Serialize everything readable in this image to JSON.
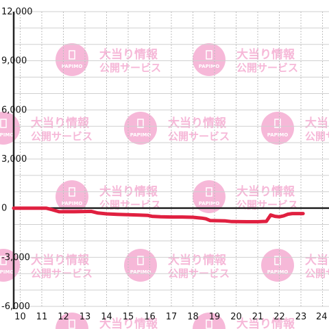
{
  "chart_data": {
    "type": "line",
    "title": "",
    "xlabel": "",
    "ylabel": "",
    "xlim": [
      9.7,
      24.3
    ],
    "ylim": [
      -6000,
      12000
    ],
    "x_ticks": [
      10,
      11,
      12,
      13,
      14,
      15,
      16,
      17,
      18,
      19,
      20,
      21,
      22,
      23,
      24
    ],
    "x_tick_labels": [
      "10",
      "11",
      "12",
      "13",
      "14",
      "15",
      "16",
      "17",
      "18",
      "19",
      "20",
      "21",
      "22",
      "23",
      "24"
    ],
    "y_ticks": [
      12000,
      9000,
      6000,
      3000,
      0,
      -3000,
      -6000
    ],
    "y_tick_labels": [
      "12,000",
      "9,000",
      "6,000",
      "3,000",
      "0",
      "-3,000",
      "-6,000"
    ],
    "grid": true,
    "zero_line": true,
    "series": [
      {
        "color": "#e02040",
        "x": [
          9.7,
          11.2,
          11.5,
          11.8,
          12.5,
          13.3,
          13.6,
          14.0,
          14.5,
          15.0,
          15.5,
          15.9,
          16.1,
          16.5,
          17.0,
          17.5,
          18.0,
          18.4,
          18.6,
          18.8,
          19.5,
          19.8,
          20.5,
          21.0,
          21.4,
          21.6,
          21.8,
          22.0,
          22.2,
          22.4,
          22.6,
          23.1
        ],
        "values": [
          0,
          0,
          -100,
          -220,
          -220,
          -200,
          -300,
          -350,
          -380,
          -400,
          -420,
          -440,
          -500,
          -530,
          -540,
          -540,
          -560,
          -610,
          -650,
          -760,
          -780,
          -820,
          -830,
          -830,
          -810,
          -420,
          -500,
          -530,
          -470,
          -370,
          -330,
          -330
        ]
      }
    ]
  },
  "watermark": {
    "line1": "大当り情報",
    "line2": "公開サービス",
    "logo_text": "PAPIMO",
    "color": "#f6b8d8"
  }
}
